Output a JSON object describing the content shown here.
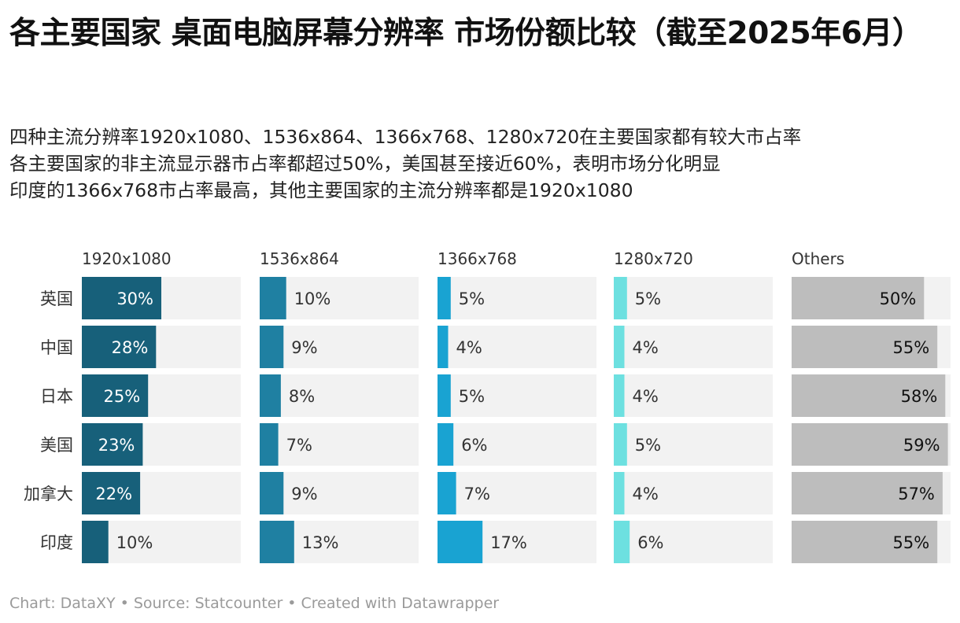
{
  "title": "各主要国家 桌面电脑屏幕分辨率 市场份额比较（截至2025年6月）",
  "subtitle": [
    "四种主流分辨率1920x1080、1536x864、1366x768、1280x720在主要国家都有较大市占率",
    "各主要国家的非主流显示器市占率都超过50%，美国甚至接近60%，表明市场分化明显",
    "印度的1366x768市占率最高，其他主要国家的主流分辨率都是1920x1080"
  ],
  "footer": {
    "chart": "Chart: DataXY",
    "source": "Source: Statcounter",
    "created": "Created with Datawrapper",
    "separator": "•"
  },
  "chart_data": {
    "type": "bar",
    "categories": [
      "英国",
      "中国",
      "日本",
      "美国",
      "加拿大",
      "印度"
    ],
    "series": [
      {
        "name": "1920x1080",
        "values": [
          30,
          28,
          25,
          23,
          22,
          10
        ],
        "color": "#17607a"
      },
      {
        "name": "1536x864",
        "values": [
          10,
          9,
          8,
          7,
          9,
          13
        ],
        "color": "#1f80a2"
      },
      {
        "name": "1366x768",
        "values": [
          5,
          4,
          5,
          6,
          7,
          17
        ],
        "color": "#19a3d2"
      },
      {
        "name": "1280x720",
        "values": [
          5,
          4,
          4,
          5,
          4,
          6
        ],
        "color": "#6de0e0"
      },
      {
        "name": "Others",
        "values": [
          50,
          55,
          58,
          59,
          57,
          55
        ],
        "color": "#bdbdbd"
      }
    ],
    "value_suffix": "%",
    "xlim": [
      0,
      60
    ],
    "background_color": "#f2f2f2",
    "label_color_dark": "#333333",
    "label_color_light": "#ffffff"
  }
}
